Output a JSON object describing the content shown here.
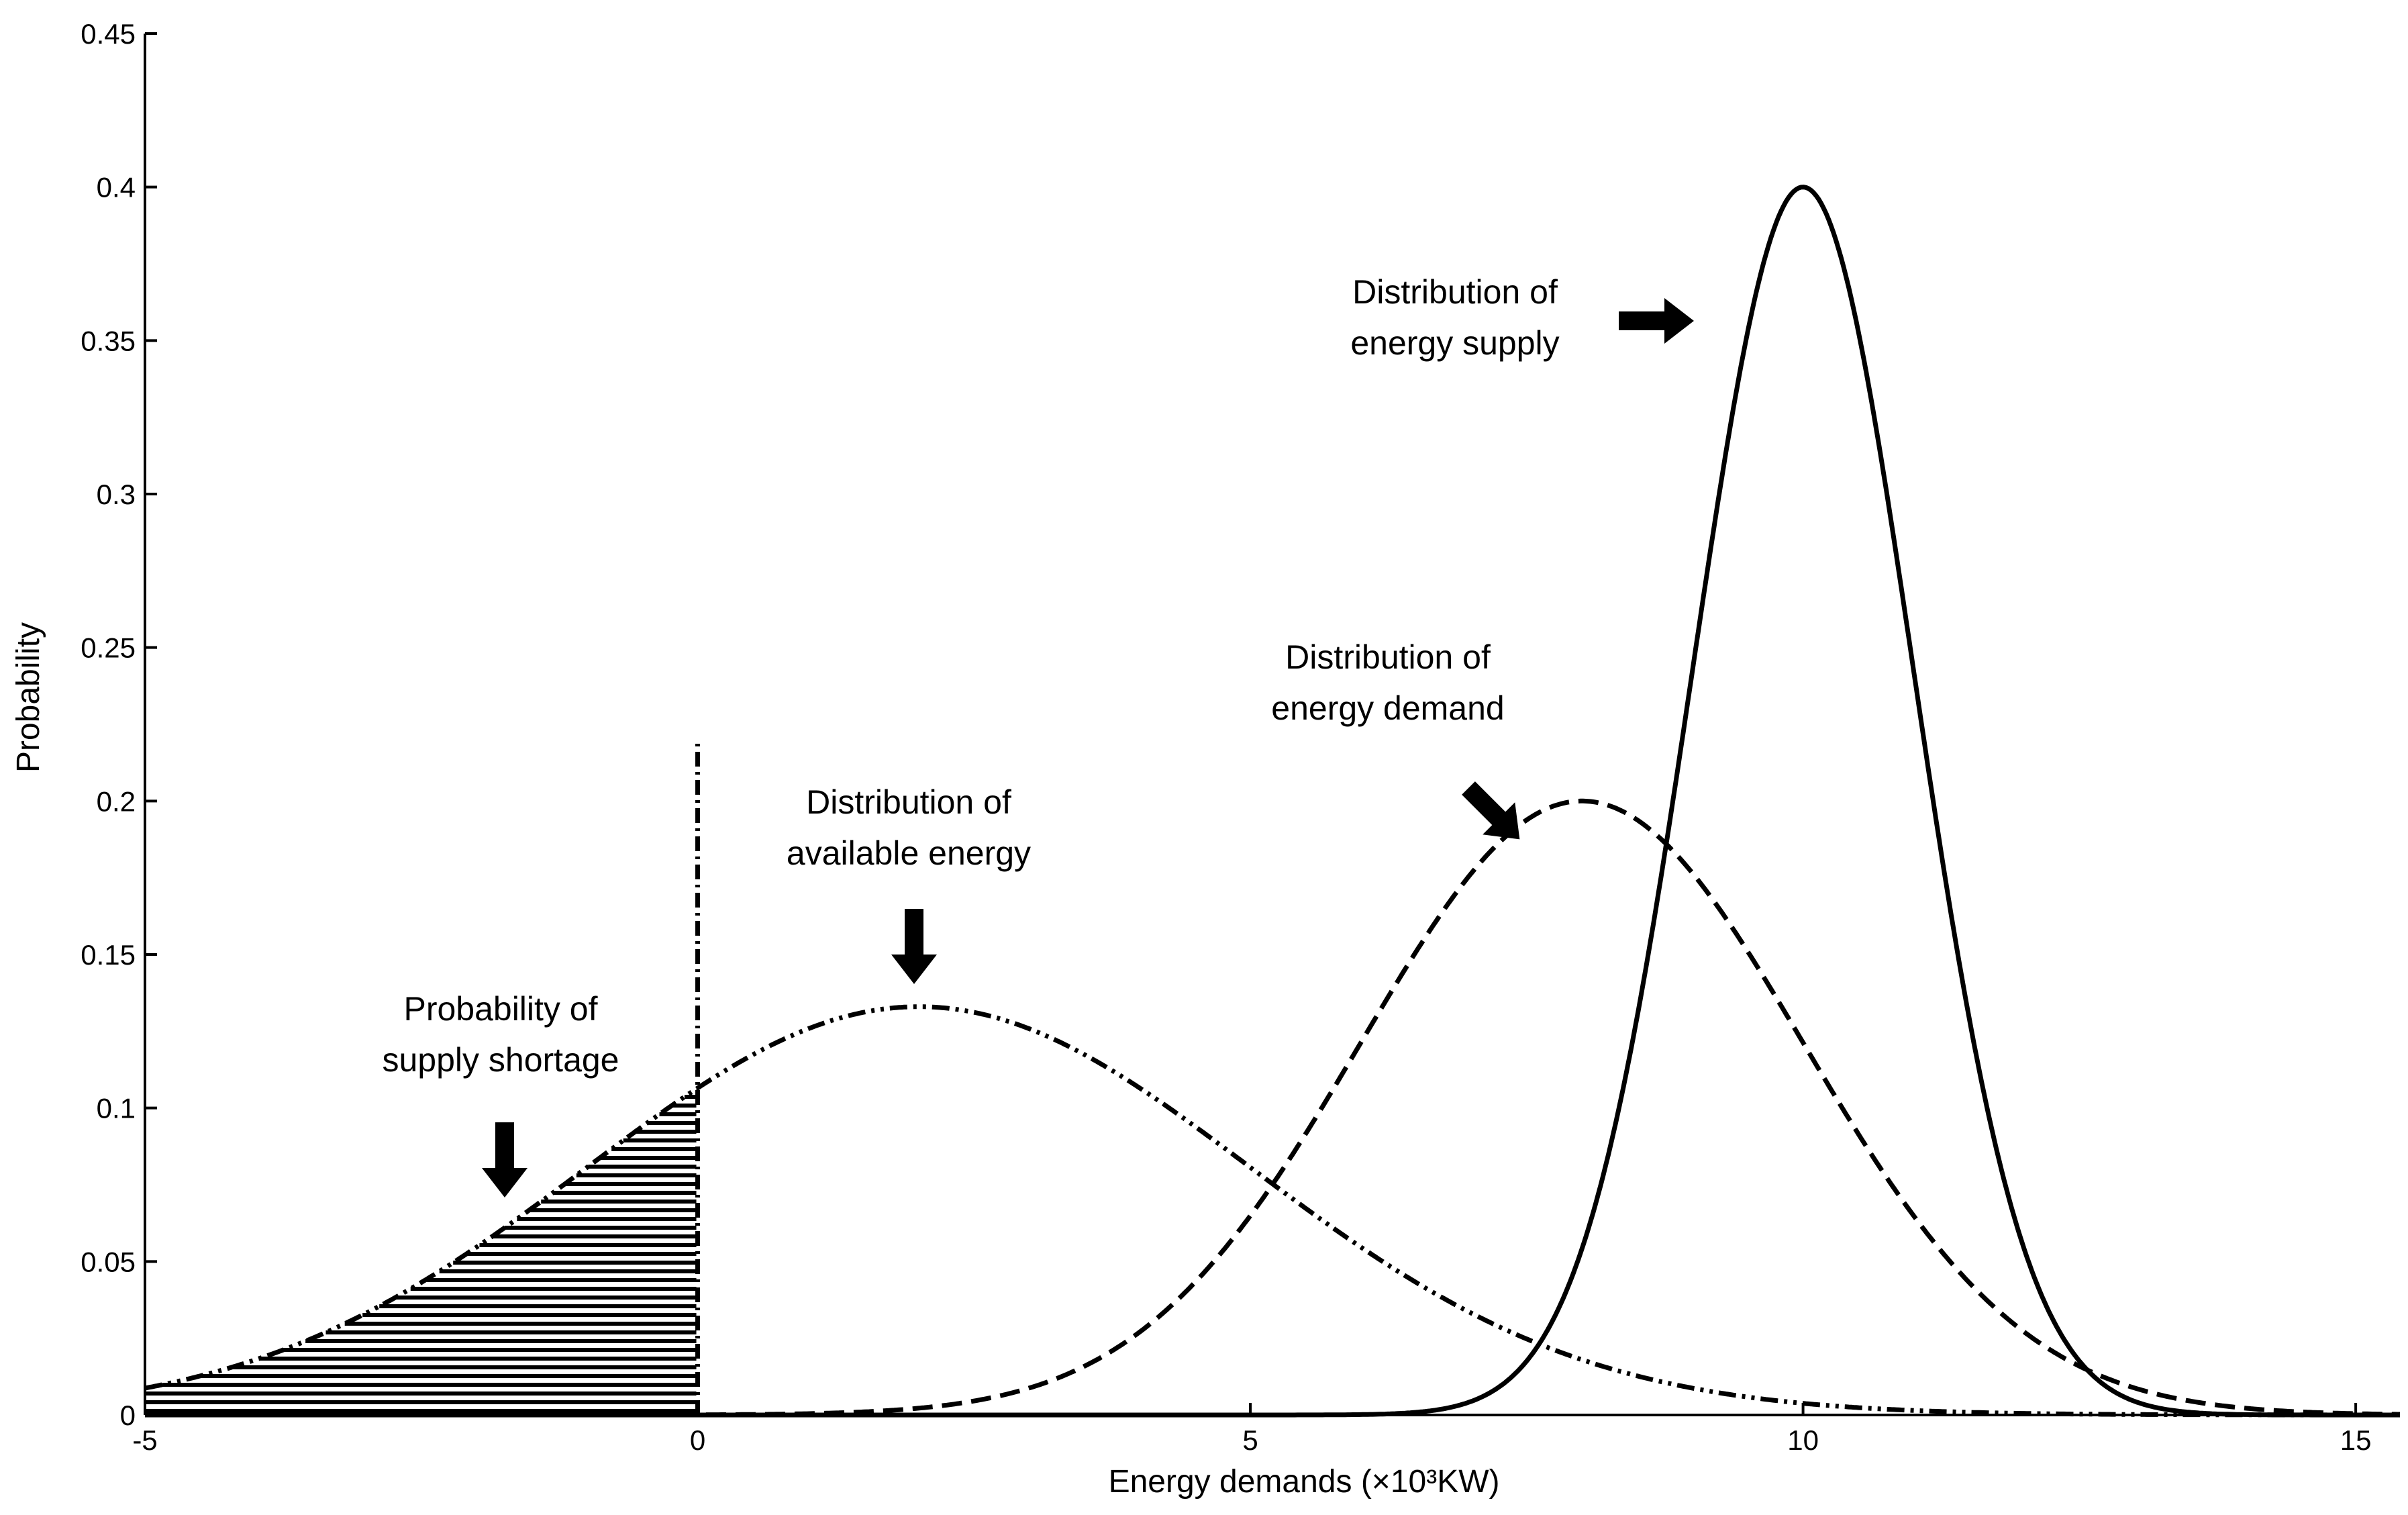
{
  "chart_data": {
    "type": "line",
    "xlabel": "Energy demands (×10³KW)",
    "ylabel": "Probability",
    "xlim": [
      -5,
      15.4
    ],
    "ylim": [
      0,
      0.45
    ],
    "xticks": [
      "-5",
      "0",
      "5",
      "10",
      "15"
    ],
    "yticks": [
      "0",
      "0.05",
      "0.1",
      "0.15",
      "0.2",
      "0.25",
      "0.3",
      "0.35",
      "0.4",
      "0.45"
    ],
    "grid": false,
    "series": [
      {
        "key": "available",
        "distribution": "normal",
        "mean": 2,
        "sd": 3,
        "peak": 0.133,
        "style": "dash-dot-dot"
      },
      {
        "key": "demand",
        "distribution": "normal",
        "mean": 8,
        "sd": 2,
        "peak": 0.2,
        "style": "dashed"
      },
      {
        "key": "supply",
        "distribution": "normal",
        "mean": 10,
        "sd": 1,
        "peak": 0.4,
        "style": "solid"
      }
    ],
    "shaded_region": {
      "series": "available",
      "from": -5,
      "to": 0,
      "pattern": "horizontal-hatch"
    },
    "vertical_marker": {
      "x": 0,
      "y_to": 0.22,
      "style": "dash-dot"
    },
    "annotations": [
      {
        "key": "supply",
        "lines": [
          "Distribution of",
          "energy supply"
        ],
        "arrow": "right"
      },
      {
        "key": "demand",
        "lines": [
          "Distribution of",
          "energy demand"
        ],
        "arrow": "down-right"
      },
      {
        "key": "available",
        "lines": [
          "Distribution of",
          "available energy"
        ],
        "arrow": "down"
      },
      {
        "key": "shortage",
        "lines": [
          "Probability of",
          "supply shortage"
        ],
        "arrow": "down"
      }
    ]
  }
}
